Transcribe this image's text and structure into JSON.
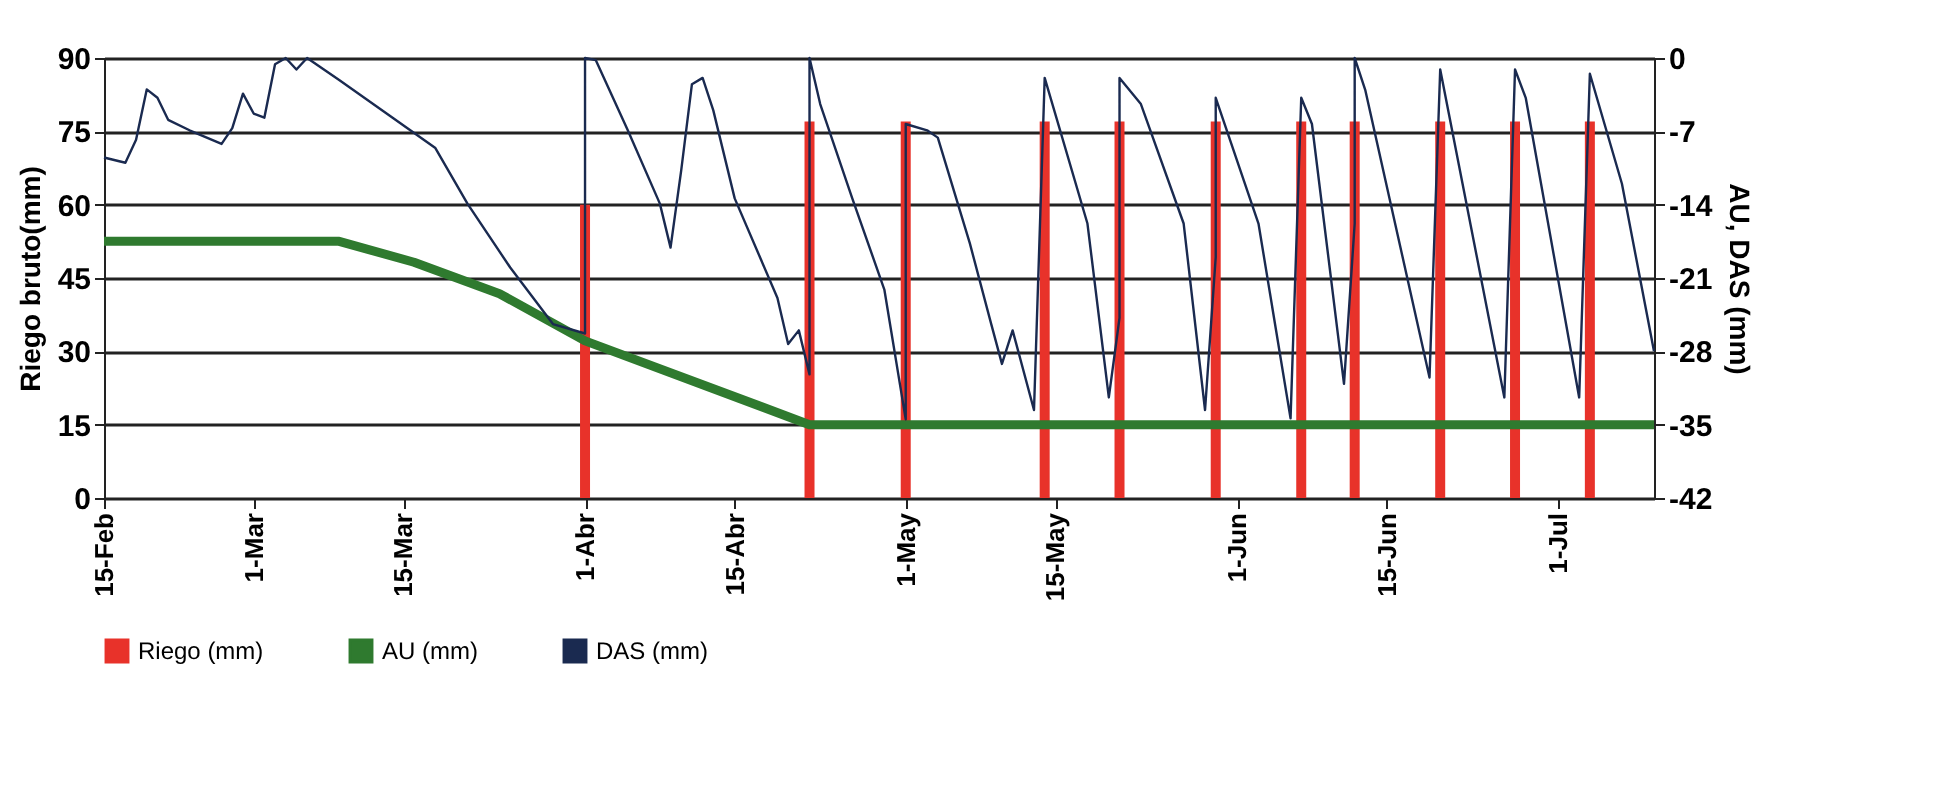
{
  "chart_data": {
    "type": "bar",
    "ylabel": "Riego bruto(mm)",
    "y2label": "AU, DAS (mm)",
    "xlim": [
      "--02-15",
      "--07-10"
    ],
    "xticks": [
      {
        "value": "--02-15",
        "label": "15-Feb"
      },
      {
        "value": "--03-01",
        "label": "1-Mar"
      },
      {
        "value": "--03-15",
        "label": "15-Mar"
      },
      {
        "value": "--04-01",
        "label": "1-Abr"
      },
      {
        "value": "--04-15",
        "label": "15-Abr"
      },
      {
        "value": "--05-01",
        "label": "1-May"
      },
      {
        "value": "--05-15",
        "label": "15-May"
      },
      {
        "value": "--06-01",
        "label": "1-Jun"
      },
      {
        "value": "--06-15",
        "label": "15-Jun"
      },
      {
        "value": "--07-01",
        "label": "1-Jul"
      }
    ],
    "ylim": [
      0,
      90
    ],
    "yticks": [
      0,
      15,
      30,
      45,
      60,
      75,
      90
    ],
    "y2lim": [
      -42,
      0
    ],
    "y2ticks": [
      -42,
      -35,
      -28,
      -21,
      -14,
      -7,
      0
    ],
    "grid": "y",
    "legend": "bottom",
    "series": [
      {
        "name": "Riego (mm)",
        "color": "#e8322a",
        "x": [
          "--04-01",
          "--04-22",
          "--05-01",
          "--05-14",
          "--05-21",
          "--05-30",
          "--06-07",
          "--06-12",
          "--06-20",
          "--06-27",
          "--07-04"
        ],
        "values": [
          60,
          77,
          77,
          77,
          77,
          77,
          77,
          77,
          77,
          77,
          77
        ]
      },
      {
        "name": "AU (mm)",
        "type": "line",
        "axis": "y2",
        "color": "#2f7a2f",
        "x": [
          "--02-15",
          "--03-09",
          "--03-16",
          "--03-24",
          "--04-01",
          "--04-22",
          "--07-10"
        ],
        "values": [
          -17.5,
          -17.5,
          -19.5,
          -22.5,
          -27,
          -35,
          -35
        ]
      },
      {
        "name": "DAS (mm)",
        "type": "line",
        "axis": "y2",
        "color": "#1a2a50",
        "x": [
          "--02-15",
          "--02-17",
          "--02-18",
          "--02-19",
          "--02-20",
          "--02-21",
          "--02-23",
          "--02-26",
          "--02-27",
          "--02-28",
          "--03-01",
          "--03-02",
          "--03-03",
          "--03-04",
          "--03-05",
          "--03-06",
          "--03-09",
          "--03-14",
          "--03-18",
          "--03-21",
          "--03-25",
          "--03-29",
          "--04-01",
          "--04-01",
          "--04-02",
          "--04-05",
          "--04-08",
          "--04-09",
          "--04-10",
          "--04-11",
          "--04-12",
          "--04-13",
          "--04-15",
          "--04-19",
          "--04-20",
          "--04-21",
          "--04-22",
          "--04-22",
          "--04-23",
          "--04-26",
          "--04-29",
          "--05-01",
          "--05-01",
          "--05-03",
          "--05-04",
          "--05-07",
          "--05-09",
          "--05-10",
          "--05-11",
          "--05-13",
          "--05-14",
          "--05-18",
          "--05-20",
          "--05-21",
          "--05-21",
          "--05-23",
          "--05-27",
          "--05-29",
          "--05-30",
          "--05-30",
          "--06-03",
          "--06-06",
          "--06-07",
          "--06-08",
          "--06-11",
          "--06-12",
          "--06-12",
          "--06-13",
          "--06-19",
          "--06-20",
          "--06-26",
          "--06-27",
          "--06-28",
          "--07-03",
          "--07-04",
          "--07-07",
          "--07-10"
        ],
        "values": [
          -9.5,
          -10,
          -7.8,
          -3,
          -3.8,
          -5.9,
          -6.9,
          -8.2,
          -6.7,
          -3.4,
          -5.3,
          -5.7,
          -0.6,
          0,
          -1.1,
          0,
          -2.1,
          -5.7,
          -8.6,
          -13.9,
          -20,
          -25.4,
          -26.3,
          0,
          -0.2,
          -6.9,
          -13.9,
          -18.1,
          -10.7,
          -2.5,
          -1.9,
          -5,
          -13.4,
          -22.9,
          -27.3,
          -26,
          -30.2,
          0,
          -4.4,
          -13.4,
          -22.1,
          -34.5,
          -6.3,
          -6.9,
          -7.6,
          -17.7,
          -25.4,
          -29.2,
          -26,
          -33.6,
          -1.9,
          -15.8,
          -32.4,
          -24.8,
          -1.9,
          -4.4,
          -15.8,
          -33.6,
          -19,
          -3.8,
          -15.8,
          -34.4,
          -3.8,
          -6.3,
          -31.1,
          -15.8,
          0,
          -3.1,
          -30.5,
          -1.1,
          -32.4,
          -1.1,
          -3.8,
          -32.4,
          -1.5,
          -12,
          -28
        ]
      }
    ]
  }
}
